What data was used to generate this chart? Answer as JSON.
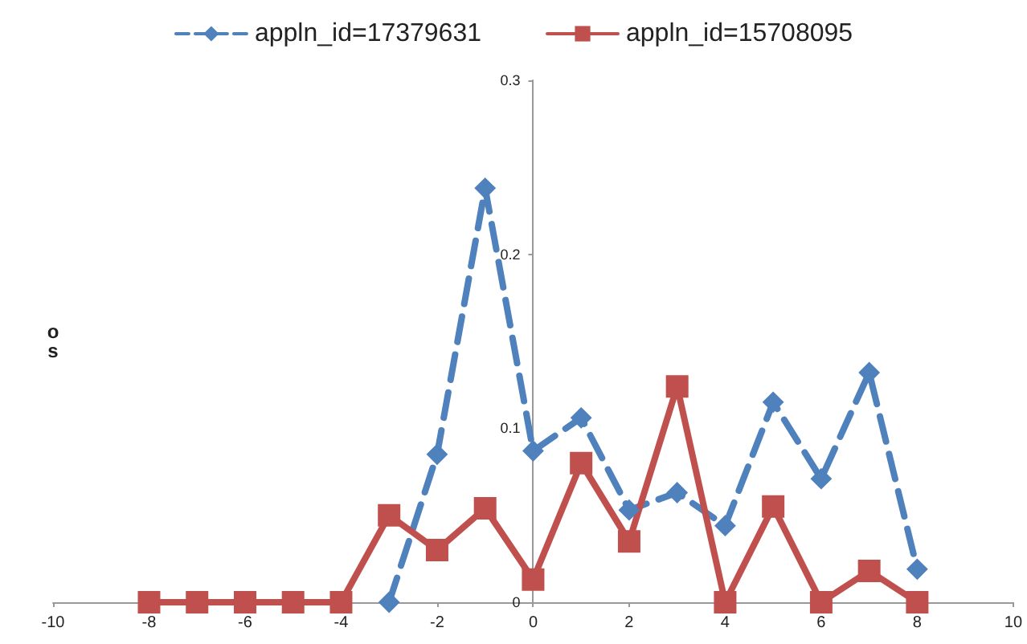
{
  "chart_data": {
    "type": "line",
    "ylabel": "os",
    "x": [
      -8,
      -7,
      -6,
      -5,
      -4,
      -3,
      -2,
      -1,
      0,
      1,
      2,
      3,
      4,
      5,
      6,
      7,
      8
    ],
    "series": [
      {
        "name": "appln_id=17379631",
        "color": "#4f81bd",
        "marker": "diamond",
        "line_style": "dashed",
        "values": [
          null,
          null,
          null,
          null,
          null,
          0,
          0.085,
          0.238,
          0.087,
          0.106,
          0.053,
          0.063,
          0.044,
          0.115,
          0.071,
          0.132,
          0.019
        ]
      },
      {
        "name": "appln_id=15708095",
        "color": "#c0504d",
        "marker": "square",
        "line_style": "solid",
        "values": [
          0,
          0,
          0,
          0,
          0,
          0.05,
          0.03,
          0.054,
          0.013,
          0.08,
          0.035,
          0.124,
          0,
          0.055,
          0,
          0.018,
          0
        ]
      }
    ],
    "xlim": [
      -10,
      10
    ],
    "xticks": [
      -10,
      -8,
      -6,
      -4,
      -2,
      0,
      2,
      4,
      6,
      8,
      10
    ],
    "ylim": [
      0,
      0.3
    ],
    "yticks": [
      0,
      0.1,
      0.2,
      0.3
    ],
    "grid": false,
    "legend": "top"
  }
}
